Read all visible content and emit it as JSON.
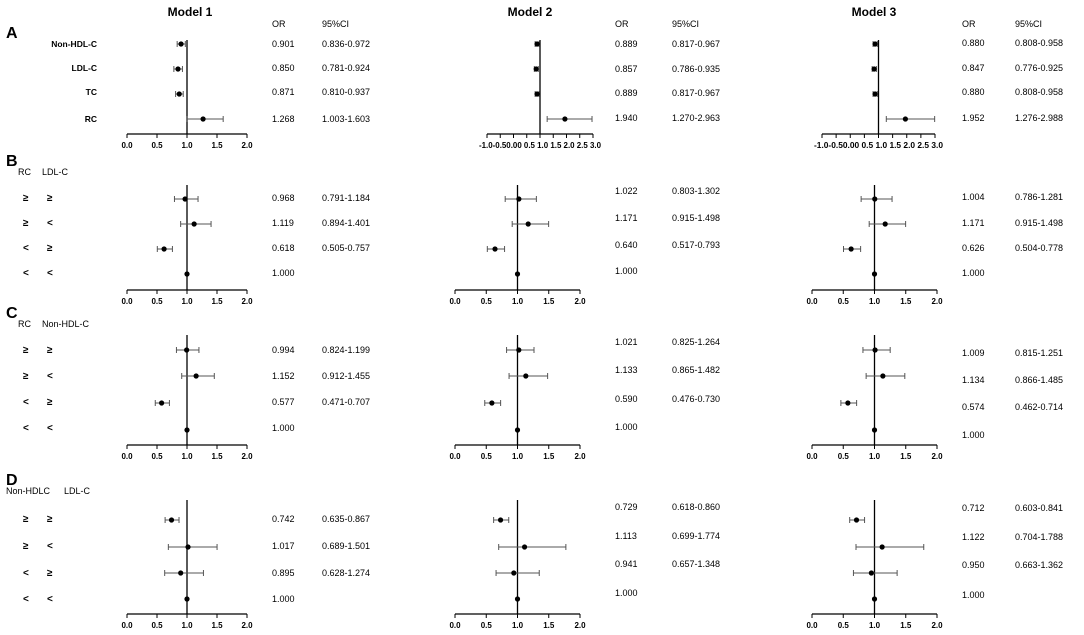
{
  "headers": {
    "models": [
      "Model 1",
      "Model 2",
      "Model 3"
    ],
    "or": "OR",
    "ci": "95%CI"
  },
  "panels": [
    {
      "letter": "A",
      "group_labels": null,
      "rows": [
        "Non-HDL-C",
        "LDL-C",
        "TC",
        "RC"
      ],
      "models": [
        {
          "ticks": [
            0.0,
            0.5,
            1.0,
            1.5,
            2.0
          ],
          "data": [
            {
              "or": 0.901,
              "lo": 0.836,
              "hi": 0.972,
              "or_text": "0.901",
              "ci_text": "0.836-0.972"
            },
            {
              "or": 0.85,
              "lo": 0.781,
              "hi": 0.924,
              "or_text": "0.850",
              "ci_text": "0.781-0.924"
            },
            {
              "or": 0.871,
              "lo": 0.81,
              "hi": 0.937,
              "or_text": "0.871",
              "ci_text": "0.810-0.937"
            },
            {
              "or": 1.268,
              "lo": 1.003,
              "hi": 1.603,
              "or_text": "1.268",
              "ci_text": "1.003-1.603"
            }
          ]
        },
        {
          "ticks": [
            -1.0,
            -0.5,
            0,
            0.5,
            1.0,
            1.5,
            2.0,
            2.5,
            3.0
          ],
          "tick_text": "-1.0-0.50.00 0.5 1.0 1.5 2.0 2.5 3.0",
          "data": [
            {
              "or": 0.889,
              "lo": 0.817,
              "hi": 0.967,
              "or_text": "0.889",
              "ci_text": "0.817-0.967"
            },
            {
              "or": 0.857,
              "lo": 0.786,
              "hi": 0.935,
              "or_text": "0.857",
              "ci_text": "0.786-0.935"
            },
            {
              "or": 0.889,
              "lo": 0.817,
              "hi": 0.967,
              "or_text": "0.889",
              "ci_text": "0.817-0.967"
            },
            {
              "or": 1.94,
              "lo": 1.27,
              "hi": 2.963,
              "or_text": "1.940",
              "ci_text": "1.270-2.963"
            }
          ]
        },
        {
          "ticks": [
            -1.0,
            -0.5,
            0,
            0.5,
            1.0,
            1.5,
            2.0,
            2.5,
            3.0
          ],
          "tick_text": "-1.0-0.50.00 0.5 1.0 1.5 2.0 2.5 3.0",
          "data": [
            {
              "or": 0.88,
              "lo": 0.808,
              "hi": 0.958,
              "or_text": "0.880",
              "ci_text": "0.808-0.958"
            },
            {
              "or": 0.847,
              "lo": 0.776,
              "hi": 0.925,
              "or_text": "0.847",
              "ci_text": "0.776-0.925"
            },
            {
              "or": 0.88,
              "lo": 0.808,
              "hi": 0.958,
              "or_text": "0.880",
              "ci_text": "0.808-0.958"
            },
            {
              "or": 1.952,
              "lo": 1.276,
              "hi": 2.988,
              "or_text": "1.952",
              "ci_text": "1.276-2.988"
            }
          ]
        }
      ]
    },
    {
      "letter": "B",
      "group_labels": [
        "RC",
        "LDL-C"
      ],
      "rows": [
        [
          "≥",
          "≥"
        ],
        [
          "≥",
          "<"
        ],
        [
          "<",
          "≥"
        ],
        [
          "<",
          "<"
        ]
      ],
      "models": [
        {
          "ticks": [
            0.0,
            0.5,
            1.0,
            1.5,
            2.0
          ],
          "data": [
            {
              "or": 0.968,
              "lo": 0.791,
              "hi": 1.184,
              "or_text": "0.968",
              "ci_text": "0.791-1.184"
            },
            {
              "or": 1.119,
              "lo": 0.894,
              "hi": 1.401,
              "or_text": "1.119",
              "ci_text": "0.894-1.401"
            },
            {
              "or": 0.618,
              "lo": 0.505,
              "hi": 0.757,
              "or_text": "0.618",
              "ci_text": "0.505-0.757"
            },
            {
              "or": 1.0,
              "lo": 1.0,
              "hi": 1.0,
              "or_text": "1.000",
              "ci_text": ""
            }
          ]
        },
        {
          "ticks": [
            0.0,
            0.5,
            1.0,
            1.5,
            2.0
          ],
          "data": [
            {
              "or": 1.022,
              "lo": 0.803,
              "hi": 1.302,
              "or_text": "1.022",
              "ci_text": "0.803-1.302"
            },
            {
              "or": 1.171,
              "lo": 0.915,
              "hi": 1.498,
              "or_text": "1.171",
              "ci_text": "0.915-1.498"
            },
            {
              "or": 0.64,
              "lo": 0.517,
              "hi": 0.793,
              "or_text": "0.640",
              "ci_text": "0.517-0.793"
            },
            {
              "or": 1.0,
              "lo": 1.0,
              "hi": 1.0,
              "or_text": "1.000",
              "ci_text": ""
            }
          ]
        },
        {
          "ticks": [
            0.0,
            0.5,
            1.0,
            1.5,
            2.0
          ],
          "data": [
            {
              "or": 1.004,
              "lo": 0.786,
              "hi": 1.281,
              "or_text": "1.004",
              "ci_text": "0.786-1.281"
            },
            {
              "or": 1.171,
              "lo": 0.915,
              "hi": 1.498,
              "or_text": "1.171",
              "ci_text": "0.915-1.498"
            },
            {
              "or": 0.626,
              "lo": 0.504,
              "hi": 0.778,
              "or_text": "0.626",
              "ci_text": "0.504-0.778"
            },
            {
              "or": 1.0,
              "lo": 1.0,
              "hi": 1.0,
              "or_text": "1.000",
              "ci_text": ""
            }
          ]
        }
      ]
    },
    {
      "letter": "C",
      "group_labels": [
        "RC",
        "Non-HDL-C"
      ],
      "rows": [
        [
          "≥",
          "≥"
        ],
        [
          "≥",
          "<"
        ],
        [
          "<",
          "≥"
        ],
        [
          "<",
          "<"
        ]
      ],
      "models": [
        {
          "ticks": [
            0.0,
            0.5,
            1.0,
            1.5,
            2.0
          ],
          "data": [
            {
              "or": 0.994,
              "lo": 0.824,
              "hi": 1.199,
              "or_text": "0.994",
              "ci_text": "0.824-1.199"
            },
            {
              "or": 1.152,
              "lo": 0.912,
              "hi": 1.455,
              "or_text": "1.152",
              "ci_text": "0.912-1.455"
            },
            {
              "or": 0.577,
              "lo": 0.471,
              "hi": 0.707,
              "or_text": "0.577",
              "ci_text": "0.471-0.707"
            },
            {
              "or": 1.0,
              "lo": 1.0,
              "hi": 1.0,
              "or_text": "1.000",
              "ci_text": ""
            }
          ]
        },
        {
          "ticks": [
            0.0,
            0.5,
            1.0,
            1.5,
            2.0
          ],
          "data": [
            {
              "or": 1.021,
              "lo": 0.825,
              "hi": 1.264,
              "or_text": "1.021",
              "ci_text": "0.825-1.264"
            },
            {
              "or": 1.133,
              "lo": 0.865,
              "hi": 1.482,
              "or_text": "1.133",
              "ci_text": "0.865-1.482"
            },
            {
              "or": 0.59,
              "lo": 0.476,
              "hi": 0.73,
              "or_text": "0.590",
              "ci_text": "0.476-0.730"
            },
            {
              "or": 1.0,
              "lo": 1.0,
              "hi": 1.0,
              "or_text": "1.000",
              "ci_text": ""
            }
          ]
        },
        {
          "ticks": [
            0.0,
            0.5,
            1.0,
            1.5,
            2.0
          ],
          "data": [
            {
              "or": 1.009,
              "lo": 0.815,
              "hi": 1.251,
              "or_text": "1.009",
              "ci_text": "0.815-1.251"
            },
            {
              "or": 1.134,
              "lo": 0.866,
              "hi": 1.485,
              "or_text": "1.134",
              "ci_text": "0.866-1.485"
            },
            {
              "or": 0.574,
              "lo": 0.462,
              "hi": 0.714,
              "or_text": "0.574",
              "ci_text": "0.462-0.714"
            },
            {
              "or": 1.0,
              "lo": 1.0,
              "hi": 1.0,
              "or_text": "1.000",
              "ci_text": ""
            }
          ]
        }
      ]
    },
    {
      "letter": "D",
      "group_labels": [
        "Non-HDLC",
        "LDL-C"
      ],
      "rows": [
        [
          "≥",
          "≥"
        ],
        [
          "≥",
          "<"
        ],
        [
          "<",
          "≥"
        ],
        [
          "<",
          "<"
        ]
      ],
      "models": [
        {
          "ticks": [
            0.0,
            0.5,
            1.0,
            1.5,
            2.0
          ],
          "data": [
            {
              "or": 0.742,
              "lo": 0.635,
              "hi": 0.867,
              "or_text": "0.742",
              "ci_text": "0.635-0.867"
            },
            {
              "or": 1.017,
              "lo": 0.689,
              "hi": 1.501,
              "or_text": "1.017",
              "ci_text": "0.689-1.501"
            },
            {
              "or": 0.895,
              "lo": 0.628,
              "hi": 1.274,
              "or_text": "0.895",
              "ci_text": "0.628-1.274"
            },
            {
              "or": 1.0,
              "lo": 1.0,
              "hi": 1.0,
              "or_text": "1.000",
              "ci_text": ""
            }
          ]
        },
        {
          "ticks": [
            0.0,
            0.5,
            1.0,
            1.5,
            2.0
          ],
          "data": [
            {
              "or": 0.729,
              "lo": 0.618,
              "hi": 0.86,
              "or_text": "0.729",
              "ci_text": "0.618-0.860"
            },
            {
              "or": 1.113,
              "lo": 0.699,
              "hi": 1.774,
              "or_text": "1.113",
              "ci_text": "0.699-1.774"
            },
            {
              "or": 0.941,
              "lo": 0.657,
              "hi": 1.348,
              "or_text": "0.941",
              "ci_text": "0.657-1.348"
            },
            {
              "or": 1.0,
              "lo": 1.0,
              "hi": 1.0,
              "or_text": "1.000",
              "ci_text": ""
            }
          ]
        },
        {
          "ticks": [
            0.0,
            0.5,
            1.0,
            1.5,
            2.0
          ],
          "data": [
            {
              "or": 0.712,
              "lo": 0.603,
              "hi": 0.841,
              "or_text": "0.712",
              "ci_text": "0.603-0.841"
            },
            {
              "or": 1.122,
              "lo": 0.704,
              "hi": 1.788,
              "or_text": "1.122",
              "ci_text": "0.704-1.788"
            },
            {
              "or": 0.95,
              "lo": 0.663,
              "hi": 1.362,
              "or_text": "0.950",
              "ci_text": "0.663-1.362"
            },
            {
              "or": 1.0,
              "lo": 1.0,
              "hi": 1.0,
              "or_text": "1.000",
              "ci_text": ""
            }
          ]
        }
      ]
    }
  ],
  "chart_data": {
    "type": "scatter",
    "subtype": "forest-plot",
    "reference_line": 1.0,
    "models": [
      "Model 1",
      "Model 2",
      "Model 3"
    ],
    "panels": [
      "A",
      "B",
      "C",
      "D"
    ],
    "note": "Odds ratios with 95% CI; full values in panels[].models[].data"
  }
}
